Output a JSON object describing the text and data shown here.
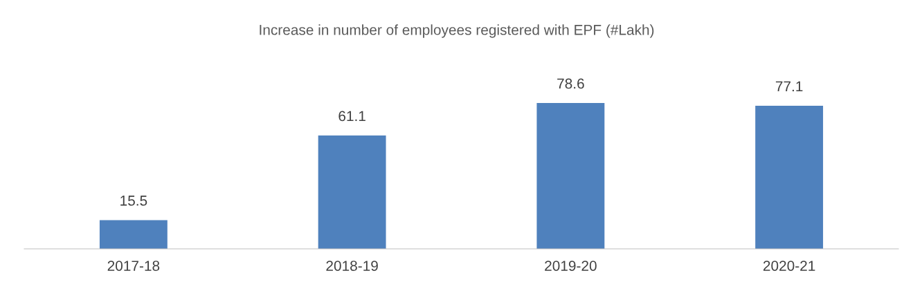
{
  "chart_data": {
    "type": "bar",
    "title": "Increase in number of employees registered with EPF (#Lakh)",
    "categories": [
      "2017-18",
      "2018-19",
      "2019-20",
      "2020-21"
    ],
    "values": [
      15.5,
      61.1,
      78.6,
      77.1
    ],
    "color": "#4f81bd",
    "data_labels": true
  }
}
